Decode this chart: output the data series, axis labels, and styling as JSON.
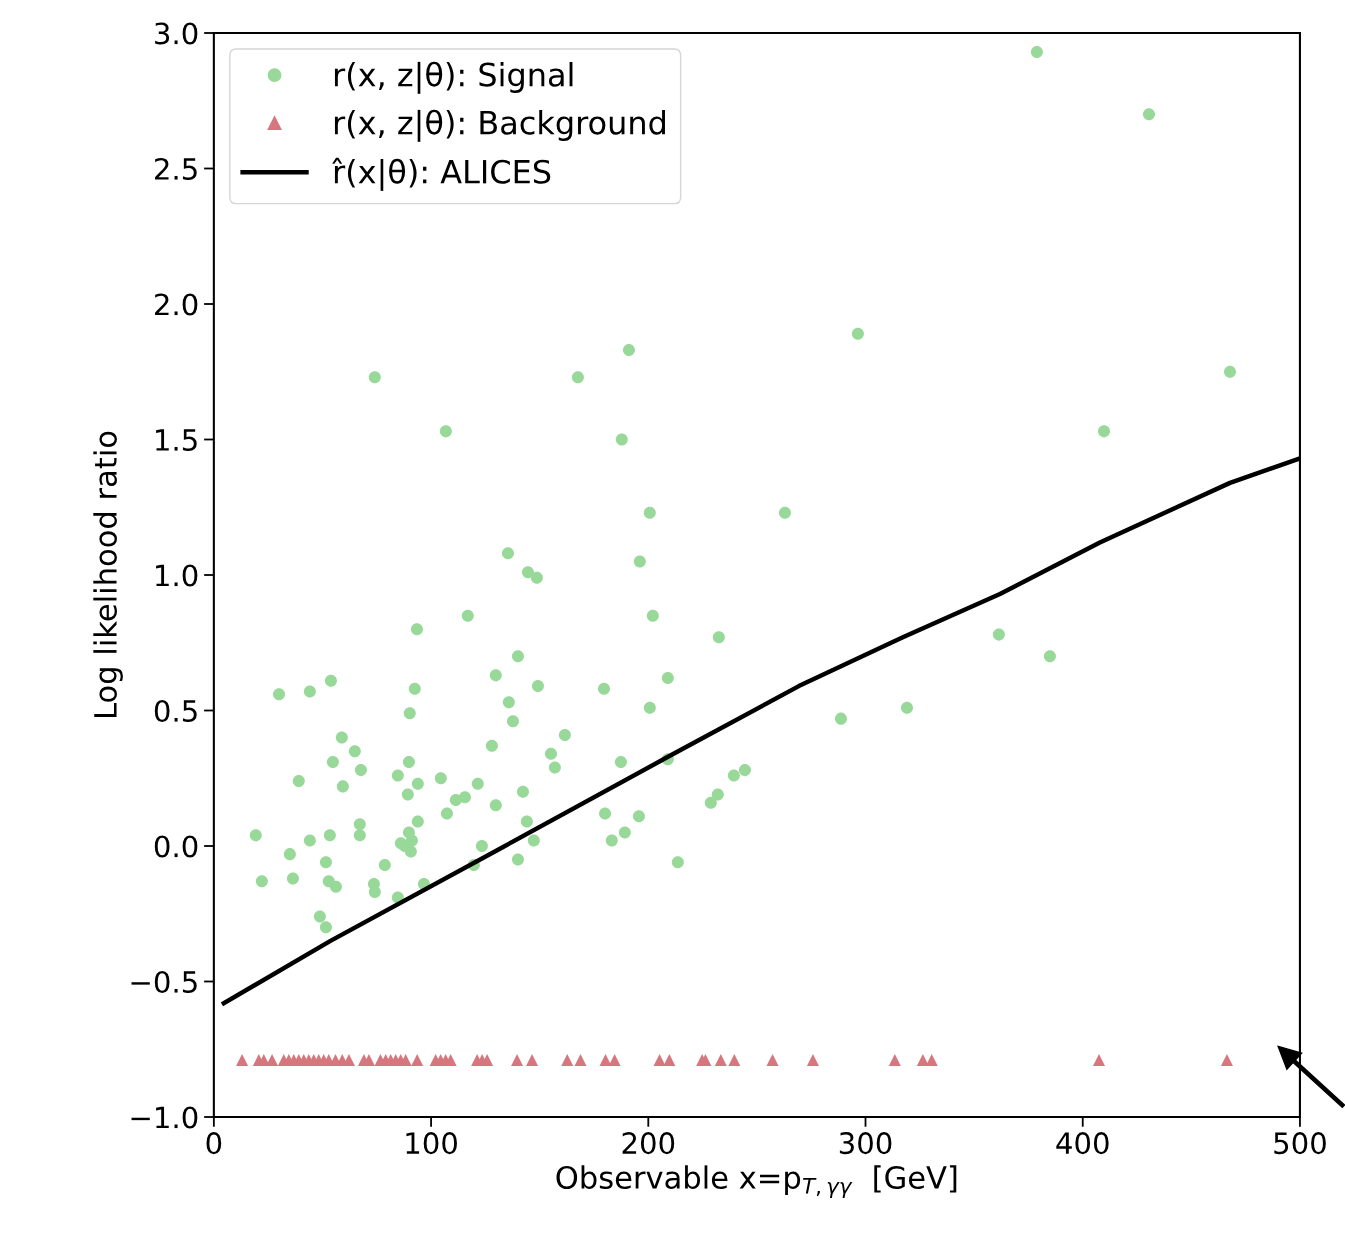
{
  "chart_data": {
    "type": "scatter",
    "xlabel": "Observable x=p$_{T,γγ}$  [GeV]",
    "ylabel": "Log likelihood ratio",
    "xlim": [
      0,
      500
    ],
    "xticks": [
      0,
      100,
      200,
      300,
      400,
      500
    ],
    "ylim": [
      -1.0,
      3.0
    ],
    "yticks": [
      {
        "value": -1.0,
        "label": "−1.0"
      },
      {
        "value": -0.5,
        "label": "−0.5"
      },
      {
        "value": 0.0,
        "label": "0.0"
      },
      {
        "value": 0.5,
        "label": "0.5"
      },
      {
        "value": 1.0,
        "label": "1.0"
      },
      {
        "value": 1.5,
        "label": "1.5"
      },
      {
        "value": 2.0,
        "label": "2.0"
      },
      {
        "value": 2.5,
        "label": "2.5"
      },
      {
        "value": 3.0,
        "label": "3.0"
      }
    ],
    "grid": false,
    "legend": "top left",
    "series": [
      {
        "name": "r(x, z|θ): Signal",
        "marker": "circle",
        "color": "#98d99a",
        "x": [
          19.3,
          22.1,
          30,
          35.0,
          36.4,
          39.1,
          44.2,
          44.2,
          48.8,
          51.6,
          51.6,
          52.9,
          53.4,
          53.9,
          54.8,
          56.2,
          58.9,
          59.4,
          64.9,
          67.2,
          67.7,
          67.2,
          74.1,
          73.7,
          74.1,
          78.7,
          84.7,
          84.7,
          86.1,
          87.9,
          89.3,
          89.8,
          89.8,
          90.2,
          90.7,
          91.2,
          92.5,
          93.5,
          93.9,
          93.9,
          96.7,
          104.5,
          106.8,
          107.3,
          111.4,
          115.6,
          116.9,
          119.7,
          121.5,
          123.4,
          128.0,
          129.8,
          129.8,
          135.4,
          135.8,
          137.7,
          140.0,
          140.0,
          142.3,
          144.6,
          144.1,
          147.3,
          148.7,
          149.2,
          155.2,
          157.0,
          161.6,
          167.6,
          179.6,
          180.1,
          183.2,
          187.4,
          187.8,
          189.2,
          191.1,
          195.7,
          196.1,
          200.7,
          200.7,
          202.1,
          209.0,
          209.0,
          213.6,
          228.8,
          232.0,
          232.5,
          239.4,
          244.5,
          262.9,
          288.7,
          296.5,
          319.1,
          361.4,
          378.9,
          384.9,
          409.8,
          430.5,
          467.8
        ],
        "values": [
          0.04,
          -0.13,
          0.56,
          -0.03,
          -0.12,
          0.24,
          0.57,
          0.02,
          -0.26,
          -0.3,
          -0.06,
          -0.13,
          0.04,
          0.61,
          0.31,
          -0.15,
          0.4,
          0.22,
          0.35,
          0.08,
          0.28,
          0.04,
          1.73,
          -0.14,
          -0.17,
          -0.07,
          0.26,
          -0.19,
          0.01,
          0.0,
          0.19,
          0.31,
          0.05,
          0.49,
          -0.02,
          0.02,
          0.58,
          0.8,
          0.23,
          0.09,
          -0.14,
          0.25,
          1.53,
          0.12,
          0.17,
          0.18,
          0.85,
          -0.07,
          0.23,
          0.0,
          0.37,
          0.63,
          0.15,
          1.08,
          0.53,
          0.46,
          0.7,
          -0.05,
          0.2,
          1.01,
          0.09,
          0.02,
          0.99,
          0.59,
          0.34,
          0.29,
          0.41,
          1.73,
          0.58,
          0.12,
          0.02,
          0.31,
          1.5,
          0.05,
          1.83,
          0.11,
          1.05,
          1.23,
          0.51,
          0.85,
          0.62,
          0.32,
          -0.06,
          0.16,
          0.19,
          0.77,
          0.26,
          0.28,
          1.23,
          0.47,
          1.89,
          0.51,
          0.78,
          2.93,
          0.7,
          1.53,
          2.7,
          1.75
        ]
      },
      {
        "name": "r(x, z|θ): Background",
        "marker": "triangle",
        "color": "#d6767e",
        "x": [
          13.0,
          20.7,
          23.0,
          26.8,
          32.2,
          34.5,
          36.8,
          39.1,
          41.4,
          43.7,
          46.0,
          48.3,
          50.6,
          52.9,
          56.0,
          59.1,
          62.2,
          69.1,
          71.4,
          76.7,
          79.1,
          81.4,
          83.7,
          86.0,
          88.3,
          93.6,
          102.1,
          104.4,
          106.7,
          109.0,
          121.2,
          123.5,
          125.8,
          139.6,
          146.5,
          162.7,
          168.8,
          180.3,
          184.5,
          205.2,
          209.7,
          224.8,
          226.3,
          233.4,
          239.6,
          257.2,
          275.8,
          313.5,
          326.4,
          330.5,
          407.5,
          466.4
        ],
        "values": [
          -0.79,
          -0.79,
          -0.79,
          -0.79,
          -0.79,
          -0.79,
          -0.79,
          -0.79,
          -0.79,
          -0.79,
          -0.79,
          -0.79,
          -0.79,
          -0.79,
          -0.79,
          -0.79,
          -0.79,
          -0.79,
          -0.79,
          -0.79,
          -0.79,
          -0.79,
          -0.79,
          -0.79,
          -0.79,
          -0.79,
          -0.79,
          -0.79,
          -0.79,
          -0.79,
          -0.79,
          -0.79,
          -0.79,
          -0.79,
          -0.79,
          -0.79,
          -0.79,
          -0.79,
          -0.79,
          -0.79,
          -0.79,
          -0.79,
          -0.79,
          -0.79,
          -0.79,
          -0.79,
          -0.79,
          -0.79,
          -0.79,
          -0.79,
          -0.79,
          -0.79
        ]
      },
      {
        "name": "r̂(x|θ): ALICES",
        "type": "line",
        "marker": "none",
        "line_style": "solid",
        "color": "#000000",
        "x": [
          4.6,
          53.7,
          131.7,
          209.3,
          269.3,
          317.2,
          361.9,
          407.9,
          467.8,
          500
        ],
        "values": [
          -0.58,
          -0.35,
          -0.01,
          0.33,
          0.59,
          0.77,
          0.93,
          1.12,
          1.34,
          1.43
        ]
      }
    ]
  }
}
